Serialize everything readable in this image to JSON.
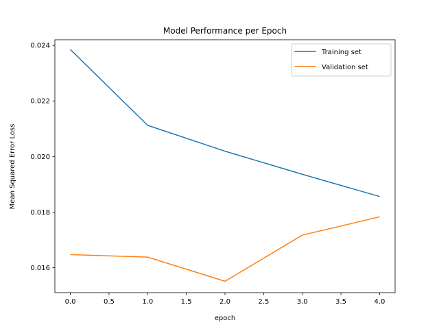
{
  "chart_data": {
    "type": "line",
    "title": "Model Performance per Epoch",
    "xlabel": "epoch",
    "ylabel": "Mean Squared Error Loss",
    "x": [
      0,
      1,
      2,
      3,
      4
    ],
    "series": [
      {
        "name": "Training set",
        "color": "#1f77b4",
        "values": [
          0.02385,
          0.02112,
          0.02019,
          0.01936,
          0.01856
        ]
      },
      {
        "name": "Validation set",
        "color": "#ff7f0e",
        "values": [
          0.01647,
          0.01638,
          0.01551,
          0.01717,
          0.01783
        ]
      }
    ],
    "xlim": [
      -0.2,
      4.2
    ],
    "ylim": [
      0.0151,
      0.0242
    ],
    "xticks": [
      0.0,
      0.5,
      1.0,
      1.5,
      2.0,
      2.5,
      3.0,
      3.5,
      4.0
    ],
    "xtick_labels": [
      "0.0",
      "0.5",
      "1.0",
      "1.5",
      "2.0",
      "2.5",
      "3.0",
      "3.5",
      "4.0"
    ],
    "yticks": [
      0.016,
      0.018,
      0.02,
      0.022,
      0.024
    ],
    "ytick_labels": [
      "0.016",
      "0.018",
      "0.020",
      "0.022",
      "0.024"
    ],
    "grid": false,
    "legend_position": "top-right"
  }
}
